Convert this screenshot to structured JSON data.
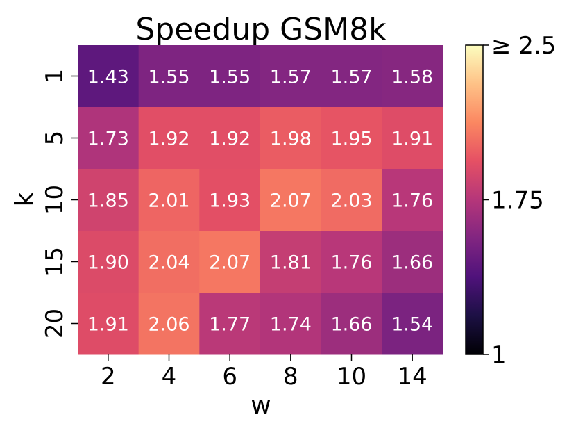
{
  "chart_data": {
    "type": "heatmap",
    "title": "Speedup GSM8k",
    "xlabel": "w",
    "ylabel": "k",
    "x": [
      "2",
      "4",
      "6",
      "8",
      "10",
      "14"
    ],
    "y": [
      "1",
      "5",
      "10",
      "15",
      "20"
    ],
    "values": [
      [
        1.43,
        1.55,
        1.55,
        1.57,
        1.57,
        1.58
      ],
      [
        1.73,
        1.92,
        1.92,
        1.98,
        1.95,
        1.91
      ],
      [
        1.85,
        2.01,
        1.93,
        2.07,
        2.03,
        1.76
      ],
      [
        1.9,
        2.04,
        2.07,
        1.81,
        1.76,
        1.66
      ],
      [
        1.91,
        2.06,
        1.77,
        1.74,
        1.66,
        1.54
      ]
    ],
    "labels": [
      [
        "1.43",
        "1.55",
        "1.55",
        "1.57",
        "1.57",
        "1.58"
      ],
      [
        "1.73",
        "1.92",
        "1.92",
        "1.98",
        "1.95",
        "1.91"
      ],
      [
        "1.85",
        "2.01",
        "1.93",
        "2.07",
        "2.03",
        "1.76"
      ],
      [
        "1.90",
        "2.04",
        "2.07",
        "1.81",
        "1.76",
        "1.66"
      ],
      [
        "1.91",
        "2.06",
        "1.77",
        "1.74",
        "1.66",
        "1.54"
      ]
    ],
    "colormap": "magma",
    "colorbar": {
      "range": [
        1,
        2.5
      ],
      "tick_values": [
        2.5,
        1.75,
        1
      ],
      "tick_labels": [
        "≥ 2.5",
        "1.75",
        "1"
      ]
    },
    "annotation_color": "#ffffff"
  }
}
